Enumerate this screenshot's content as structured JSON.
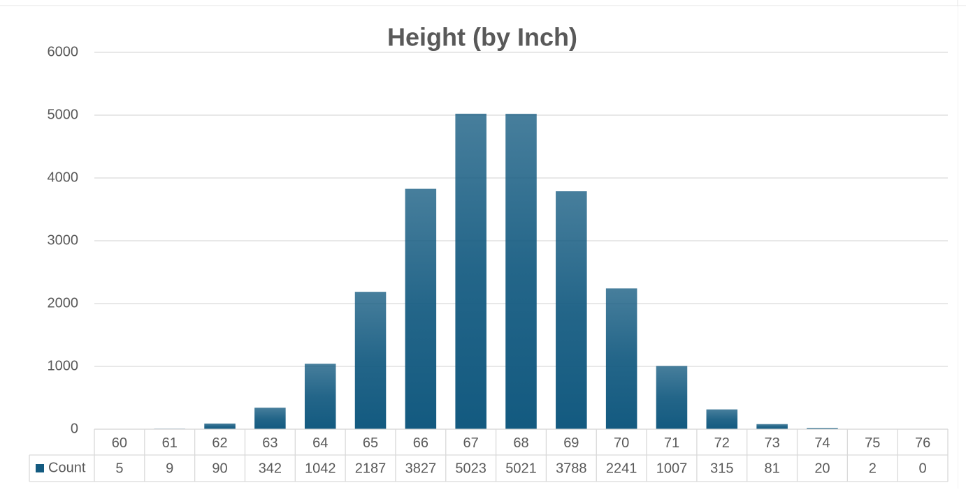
{
  "chart_data": {
    "type": "bar",
    "title": "Height (by Inch)",
    "categories": [
      "60",
      "61",
      "62",
      "63",
      "64",
      "65",
      "66",
      "67",
      "68",
      "69",
      "70",
      "71",
      "72",
      "73",
      "74",
      "75",
      "76"
    ],
    "series": [
      {
        "name": "Count",
        "color": "#135a80",
        "values": [
          5,
          9,
          90,
          342,
          1042,
          2187,
          3827,
          5023,
          5021,
          3788,
          2241,
          1007,
          315,
          81,
          20,
          2,
          0
        ]
      }
    ],
    "ylim": [
      0,
      6000
    ],
    "yticks": [
      0,
      1000,
      2000,
      3000,
      4000,
      5000,
      6000
    ],
    "grid": true,
    "data_table": true
  }
}
